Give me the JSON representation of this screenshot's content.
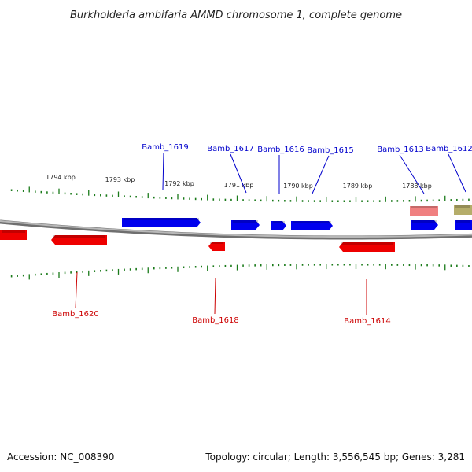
{
  "title": "Burkholderia ambifaria AMMD chromosome 1, complete genome",
  "footer": {
    "accession": "Accession: NC_008390",
    "topology": "Topology: circular; Length: 3,556,545 bp; Genes: 3,281"
  },
  "colors": {
    "forward_gene": "#0000ee",
    "reverse_gene": "#ee0000",
    "rna_pink": "#f08080",
    "other_feature": "#b5ad6a",
    "backbone": "#888888",
    "ticks": "#1a7a1a",
    "label_forward": "#0000cc",
    "label_reverse": "#cc0000"
  },
  "scale_labels": [
    {
      "kbp": 1794,
      "label": "1794 kbp"
    },
    {
      "kbp": 1793,
      "label": "1793 kbp"
    },
    {
      "kbp": 1792,
      "label": "1792 kbp"
    },
    {
      "kbp": 1791,
      "label": "1791 kbp"
    },
    {
      "kbp": 1790,
      "label": "1790 kbp"
    },
    {
      "kbp": 1789,
      "label": "1789 kbp"
    },
    {
      "kbp": 1788,
      "label": "1788 kbp"
    }
  ],
  "genes": [
    {
      "name": "Bamb_1619",
      "strand": "+",
      "type": "forward_gene"
    },
    {
      "name": "Bamb_1617",
      "strand": "+",
      "type": "forward_gene"
    },
    {
      "name": "Bamb_1616",
      "strand": "+",
      "type": "forward_gene"
    },
    {
      "name": "Bamb_1615",
      "strand": "+",
      "type": "forward_gene"
    },
    {
      "name": "Bamb_1613",
      "strand": "+",
      "type": "forward_gene"
    },
    {
      "name": "Bamb_1612",
      "strand": "+",
      "type": "forward_gene"
    },
    {
      "name": "Bamb_1620",
      "strand": "-",
      "type": "reverse_gene"
    },
    {
      "name": "Bamb_1618",
      "strand": "-",
      "type": "reverse_gene"
    },
    {
      "name": "Bamb_1614",
      "strand": "-",
      "type": "reverse_gene"
    }
  ]
}
